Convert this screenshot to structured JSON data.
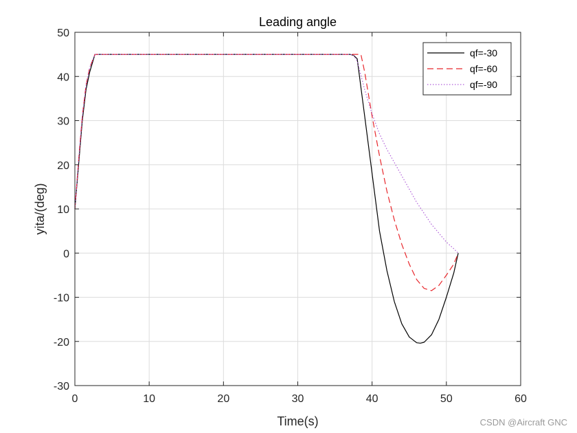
{
  "chart_data": {
    "type": "line",
    "title": "Leading angle",
    "xlabel": "Time(s)",
    "ylabel": "yita/(deg)",
    "xlim": [
      0,
      60
    ],
    "ylim": [
      -30,
      50
    ],
    "xticks": [
      0,
      10,
      20,
      30,
      40,
      50,
      60
    ],
    "yticks": [
      -30,
      -20,
      -10,
      0,
      10,
      20,
      30,
      40,
      50
    ],
    "xtick_labels": [
      "0",
      "10",
      "20",
      "30",
      "40",
      "50",
      "60"
    ],
    "ytick_labels": [
      "-30",
      "-20",
      "-10",
      "0",
      "10",
      "20",
      "30",
      "40",
      "50"
    ],
    "grid": true,
    "legend_position": "top-right",
    "series": [
      {
        "name": "qf=-30",
        "color": "#000000",
        "style": "solid",
        "x": [
          0,
          0.5,
          1.0,
          1.5,
          2.0,
          2.7,
          10,
          20,
          30,
          37.0,
          37.5,
          38.0,
          39.0,
          40.0,
          41.0,
          42.0,
          43.0,
          44.0,
          45.0,
          46.0,
          46.5,
          47.0,
          48.0,
          49.0,
          50.0,
          51.0,
          51.6
        ],
        "y": [
          10,
          20,
          30,
          37,
          41,
          45,
          45,
          45,
          45,
          45,
          44.8,
          44,
          31,
          18,
          5,
          -4,
          -11,
          -16,
          -19,
          -20.3,
          -20.4,
          -20.2,
          -18.5,
          -15,
          -10,
          -4.5,
          0
        ]
      },
      {
        "name": "qf=-60",
        "color": "#e8262b",
        "style": "dashed",
        "x": [
          0,
          0.5,
          1.0,
          1.5,
          2.0,
          2.7,
          10,
          20,
          30,
          38.0,
          38.5,
          39.0,
          40.0,
          41.0,
          42.0,
          43.0,
          44.0,
          45.0,
          46.0,
          47.0,
          48.0,
          49.0,
          50.0,
          51.0,
          51.6
        ],
        "y": [
          10,
          21,
          31,
          38,
          42,
          45,
          45,
          45,
          45,
          45,
          45,
          41,
          31,
          22,
          14,
          7.5,
          2,
          -2.5,
          -6,
          -8,
          -8.5,
          -7.3,
          -5,
          -2.5,
          0
        ]
      },
      {
        "name": "qf=-90",
        "color": "#b05fd9",
        "style": "dotted",
        "x": [
          0,
          0.5,
          1.0,
          1.5,
          2.0,
          2.7,
          10,
          20,
          30,
          37.0,
          37.5,
          38.0,
          39.0,
          40.0,
          41.0,
          42.0,
          43.0,
          44.0,
          45.0,
          46.0,
          47.0,
          48.0,
          49.0,
          50.0,
          51.0,
          51.6
        ],
        "y": [
          10,
          21,
          31,
          38,
          42,
          45,
          45,
          45,
          45,
          45,
          44.8,
          43.5,
          37,
          31.5,
          27,
          23.5,
          20.5,
          17.5,
          14.5,
          11.5,
          9,
          6.5,
          4.5,
          2.5,
          1,
          0
        ]
      }
    ]
  },
  "watermark": "CSDN @Aircraft GNC"
}
